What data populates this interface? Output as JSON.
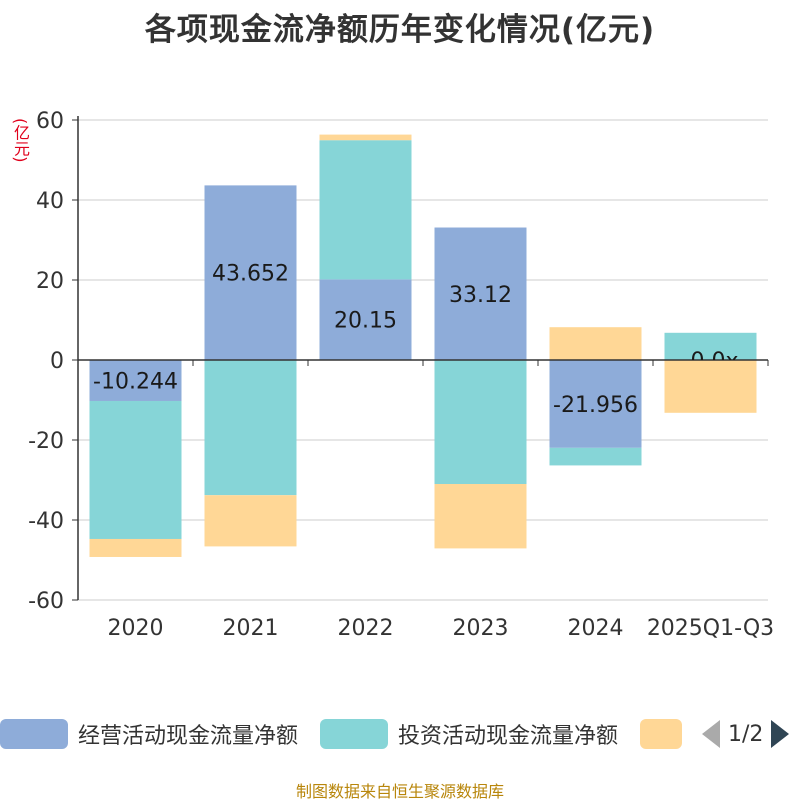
{
  "chart_data": {
    "type": "bar",
    "stacked": true,
    "title": "各项现金流净额历年变化情况(亿元)",
    "ylabel": "(亿元)",
    "ylim": [
      -60,
      60
    ],
    "yticks": [
      60,
      40,
      20,
      0,
      -20,
      -40,
      -60
    ],
    "categories": [
      "2020",
      "2021",
      "2022",
      "2023",
      "2024",
      "2025Q1-Q3"
    ],
    "series": [
      {
        "name": "经营活动现金流量净额",
        "color": "#8eacd9",
        "values": [
          -10.244,
          43.652,
          20.15,
          33.12,
          -21.956,
          null
        ],
        "labels": [
          "-10.244",
          "43.652",
          "20.15",
          "33.12",
          "-21.956",
          ""
        ]
      },
      {
        "name": "投资活动现金流量净额",
        "color": "#86d5d7",
        "values": [
          -34.5,
          -33.8,
          34.8,
          -31.0,
          -4.4,
          6.8
        ],
        "labels": [
          "",
          "",
          "",
          "",
          "",
          ""
        ]
      },
      {
        "name": "",
        "color": "#ffd796",
        "values": [
          -4.5,
          -12.8,
          1.4,
          -16.1,
          8.2,
          -13.2
        ],
        "labels": [
          "",
          "",
          "",
          "",
          "",
          ""
        ]
      }
    ],
    "partial_label": {
      "category_index": 5,
      "text": "-0.0x"
    },
    "legend_position": "bottom",
    "grid": true
  },
  "legend": {
    "pager_text": "1/2"
  },
  "source_text": "制图数据来自恒生聚源数据库",
  "icons": {
    "pager_prev": "arrow-left-icon",
    "pager_next": "arrow-right-icon"
  }
}
